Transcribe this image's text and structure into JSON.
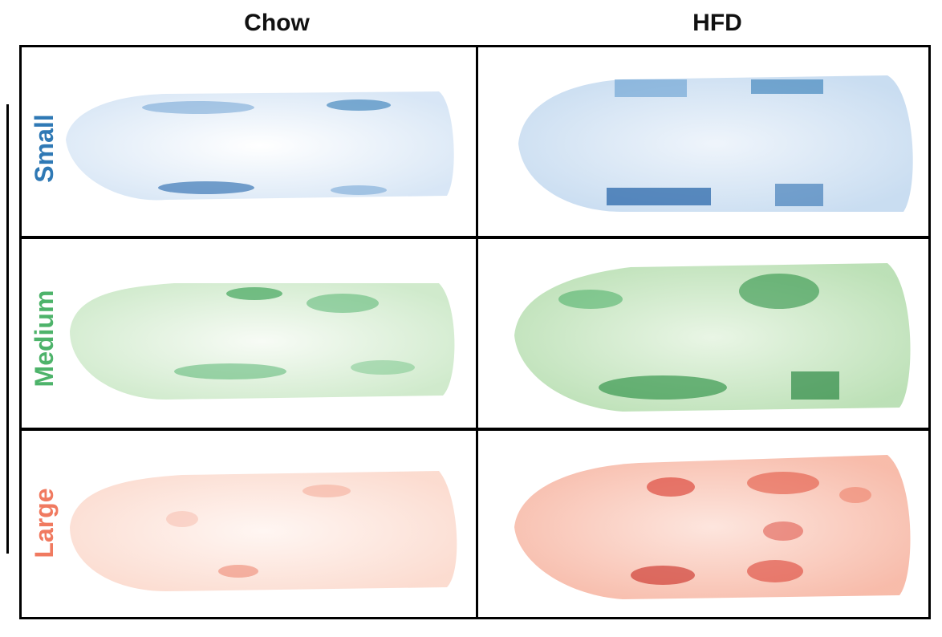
{
  "columns": [
    {
      "label": "Chow"
    },
    {
      "label": "HFD"
    }
  ],
  "rows": [
    {
      "label": "Small",
      "color": "#2f79b5",
      "heat_dark": "#1f5fa5",
      "heat_light": "#dbe8f6"
    },
    {
      "label": "Medium",
      "color": "#4db36a",
      "heat_dark": "#1f8a3a",
      "heat_light": "#dff1df"
    },
    {
      "label": "Large",
      "color": "#f07a60",
      "heat_dark": "#d8362a",
      "heat_light": "#fde4dc"
    }
  ]
}
